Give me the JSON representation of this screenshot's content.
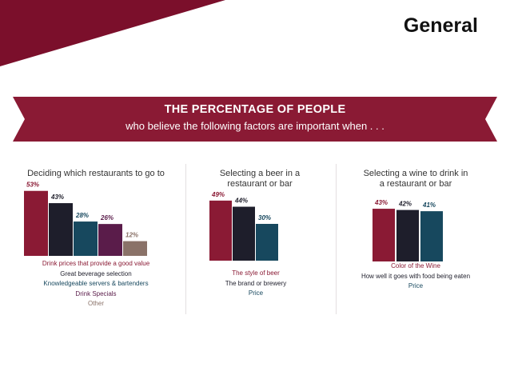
{
  "slide": {
    "title": "General"
  },
  "colors": {
    "maroon": "#8a1a34",
    "navy": "#1e1e2b",
    "teal": "#17485e",
    "plum": "#5a1c4a",
    "taupe": "#8a7268"
  },
  "banner": {
    "title": "THE PERCENTAGE OF PEOPLE",
    "subtitle": "who believe the following factors are important when . . ."
  },
  "chart_data": [
    {
      "type": "bar",
      "title": "Deciding which restaurants to go to",
      "categories": [
        "Drink prices that provide a good value",
        "Great beverage selection",
        "Knowledgeable servers & bartenders",
        "Drink Specials",
        "Other"
      ],
      "values": [
        53,
        43,
        28,
        26,
        12
      ],
      "data_labels": [
        "53%",
        "43%",
        "28%",
        "26%",
        "12%"
      ],
      "colors": [
        "#8a1a34",
        "#1e1e2b",
        "#17485e",
        "#5a1c4a",
        "#8a7268"
      ],
      "ylim": [
        0,
        60
      ]
    },
    {
      "type": "bar",
      "title": "Selecting a beer in a restaurant or bar",
      "title_lines": [
        "Selecting a beer in a",
        "restaurant or bar"
      ],
      "categories": [
        "The style of beer",
        "The brand or brewery",
        "Price"
      ],
      "values": [
        49,
        44,
        30
      ],
      "data_labels": [
        "49%",
        "44%",
        "30%"
      ],
      "colors": [
        "#8a1a34",
        "#1e1e2b",
        "#17485e"
      ],
      "ylim": [
        0,
        60
      ]
    },
    {
      "type": "bar",
      "title": "Selecting a wine to drink in a restaurant or bar",
      "title_lines": [
        "Selecting a wine to drink in",
        "a restaurant or bar"
      ],
      "categories": [
        "Color of the Wine",
        "How well it goes with food being eaten",
        "Price"
      ],
      "values": [
        43,
        42,
        41
      ],
      "data_labels": [
        "43%",
        "42%",
        "41%"
      ],
      "colors": [
        "#8a1a34",
        "#1e1e2b",
        "#17485e"
      ],
      "ylim": [
        0,
        60
      ]
    }
  ]
}
